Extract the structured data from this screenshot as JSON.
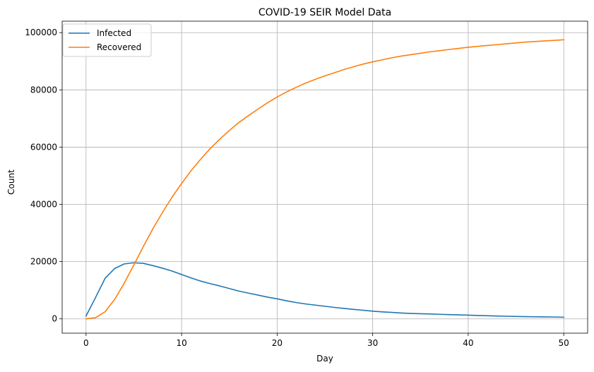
{
  "chart_data": {
    "type": "line",
    "title": "COVID-19 SEIR Model Data",
    "xlabel": "Day",
    "ylabel": "Count",
    "xlim": [
      -2.5,
      52.5
    ],
    "ylim": [
      -5000,
      104000
    ],
    "xticks": [
      0,
      10,
      20,
      30,
      40,
      50
    ],
    "yticks": [
      0,
      20000,
      40000,
      60000,
      80000,
      100000
    ],
    "grid": true,
    "legend_position": "top-left",
    "x": [
      0,
      1,
      2,
      3,
      4,
      5,
      6,
      7,
      8,
      9,
      10,
      11,
      12,
      13,
      14,
      15,
      16,
      17,
      18,
      19,
      20,
      21,
      22,
      23,
      24,
      25,
      26,
      27,
      28,
      29,
      30,
      31,
      32,
      33,
      34,
      35,
      36,
      37,
      38,
      39,
      40,
      41,
      42,
      43,
      44,
      45,
      46,
      47,
      48,
      49,
      50
    ],
    "series": [
      {
        "name": "Infected",
        "color": "#1f77b4",
        "values": [
          1000,
          7500,
          14200,
          17600,
          19200,
          19600,
          19400,
          18600,
          17700,
          16700,
          15500,
          14300,
          13200,
          12300,
          11500,
          10600,
          9700,
          9000,
          8300,
          7600,
          7000,
          6300,
          5700,
          5200,
          4800,
          4400,
          4000,
          3650,
          3300,
          3000,
          2700,
          2450,
          2250,
          2050,
          1900,
          1800,
          1700,
          1600,
          1500,
          1400,
          1300,
          1180,
          1080,
          1000,
          920,
          850,
          780,
          730,
          690,
          640,
          580
        ]
      },
      {
        "name": "Recovered",
        "color": "#ff7f0e",
        "values": [
          0,
          400,
          2500,
          6800,
          12500,
          18800,
          25300,
          31500,
          37200,
          42500,
          47300,
          51800,
          55800,
          59500,
          62800,
          65800,
          68600,
          71000,
          73300,
          75500,
          77500,
          79300,
          80900,
          82400,
          83700,
          84900,
          86000,
          87100,
          88100,
          89000,
          89800,
          90500,
          91200,
          91800,
          92300,
          92800,
          93300,
          93700,
          94100,
          94500,
          94900,
          95200,
          95500,
          95800,
          96100,
          96400,
          96700,
          96900,
          97100,
          97300,
          97500
        ]
      }
    ]
  }
}
